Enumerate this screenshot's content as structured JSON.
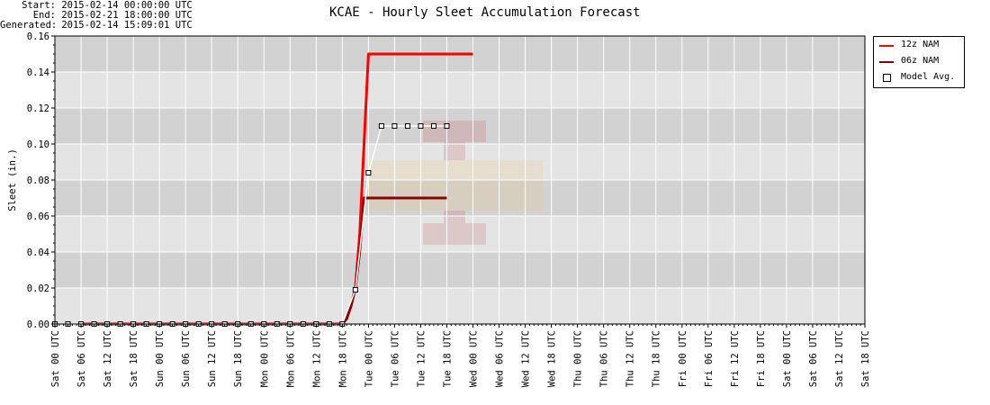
{
  "header": {
    "start_label": "Start:",
    "start_value": "2015-02-14 00:00:00 UTC",
    "end_label": "End:",
    "end_value": "2015-02-21 18:00:00 UTC",
    "generated_label": "Generated:",
    "generated_value": "2015-02-14 15:09:01 UTC"
  },
  "colors": {
    "band_dark": "#d2d2d2",
    "band_light": "#e4e4e4",
    "grid": "#ffffff",
    "nam12": "#ff0000",
    "nam06": "#8b0000",
    "avg_line": "#ffffff"
  },
  "chart_data": {
    "type": "line",
    "title": "KCAE - Hourly Sleet Accumulation Forecast",
    "ylabel": "Sleet (in.)",
    "xlabel": "",
    "ylim": [
      0,
      0.16
    ],
    "xlim_hours": [
      0,
      186
    ],
    "y_ticks": [
      "0.00",
      "0.02",
      "0.04",
      "0.06",
      "0.08",
      "0.10",
      "0.12",
      "0.14",
      "0.16"
    ],
    "x_tick_labels": [
      "Sat 00 UTC",
      "Sat 06 UTC",
      "Sat 12 UTC",
      "Sat 18 UTC",
      "Sun 00 UTC",
      "Sun 06 UTC",
      "Sun 12 UTC",
      "Sun 18 UTC",
      "Mon 00 UTC",
      "Mon 06 UTC",
      "Mon 12 UTC",
      "Mon 18 UTC",
      "Tue 00 UTC",
      "Tue 06 UTC",
      "Tue 12 UTC",
      "Tue 18 UTC",
      "Wed 00 UTC",
      "Wed 06 UTC",
      "Wed 12 UTC",
      "Wed 18 UTC",
      "Thu 00 UTC",
      "Thu 06 UTC",
      "Thu 12 UTC",
      "Thu 18 UTC",
      "Fri 00 UTC",
      "Fri 06 UTC",
      "Fri 12 UTC",
      "Fri 18 UTC",
      "Sat 00 UTC",
      "Sat 06 UTC",
      "Sat 12 UTC",
      "Sat 18 UTC"
    ],
    "legend_position": "top-right (outside plot)",
    "series": [
      {
        "name": "12z NAM",
        "color": "#ff0000",
        "points": [
          [
            66,
            0
          ],
          [
            67,
            0.003
          ],
          [
            68,
            0.01
          ],
          [
            69,
            0.02
          ],
          [
            70,
            0.05
          ],
          [
            71,
            0.1
          ],
          [
            72,
            0.15
          ],
          [
            73,
            0.15
          ],
          [
            78,
            0.15
          ],
          [
            84,
            0.15
          ],
          [
            90,
            0.15
          ],
          [
            96,
            0.15
          ]
        ]
      },
      {
        "name": "06z NAM",
        "color": "#8b0000",
        "points": [
          [
            6,
            0
          ],
          [
            12,
            0
          ],
          [
            66,
            0
          ],
          [
            67,
            0.003
          ],
          [
            68,
            0.01
          ],
          [
            69,
            0.02
          ],
          [
            70,
            0.04
          ],
          [
            71,
            0.07
          ],
          [
            72,
            0.07
          ],
          [
            78,
            0.07
          ],
          [
            84,
            0.07
          ],
          [
            90,
            0.07
          ]
        ]
      },
      {
        "name": "Model Avg.",
        "color": "#ffffff",
        "marker": "square",
        "points": [
          [
            0,
            0
          ],
          [
            3,
            0
          ],
          [
            6,
            0
          ],
          [
            9,
            0
          ],
          [
            12,
            0
          ],
          [
            15,
            0
          ],
          [
            18,
            0
          ],
          [
            21,
            0
          ],
          [
            24,
            0
          ],
          [
            27,
            0
          ],
          [
            30,
            0
          ],
          [
            33,
            0
          ],
          [
            36,
            0
          ],
          [
            39,
            0
          ],
          [
            42,
            0
          ],
          [
            45,
            0
          ],
          [
            48,
            0
          ],
          [
            51,
            0
          ],
          [
            54,
            0
          ],
          [
            57,
            0
          ],
          [
            60,
            0
          ],
          [
            63,
            0
          ],
          [
            66,
            0
          ],
          [
            69,
            0.019
          ],
          [
            72,
            0.084
          ],
          [
            75,
            0.11
          ],
          [
            78,
            0.11
          ],
          [
            81,
            0.11
          ],
          [
            84,
            0.11
          ],
          [
            87,
            0.11
          ],
          [
            90,
            0.11
          ]
        ]
      }
    ]
  }
}
